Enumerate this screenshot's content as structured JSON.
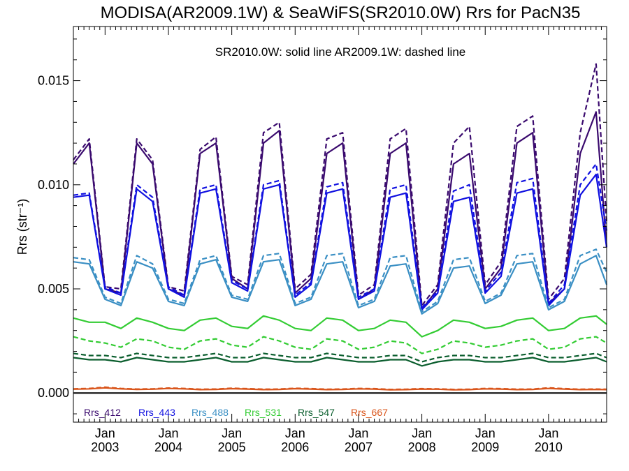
{
  "chart_data": {
    "type": "line",
    "title": "MODISA(AR2009.1W) & SeaWiFS(SR2010.0W)  Rrs for PacN35",
    "annotation": "SR2010.0W: solid line   AR2009.1W: dashed line",
    "ylabel": "Rrs (str⁻¹)",
    "xlabel": "",
    "ylim": [
      -0.0014,
      0.0176
    ],
    "xlim": [
      "2002-07",
      "2010-12"
    ],
    "yticks": [
      {
        "value": 0.0,
        "label": "0.000"
      },
      {
        "value": 0.005,
        "label": "0.005"
      },
      {
        "value": 0.01,
        "label": "0.010"
      },
      {
        "value": 0.015,
        "label": "0.015"
      }
    ],
    "xticks": [
      {
        "value": "2003-01",
        "line1": "Jan",
        "line2": "2003"
      },
      {
        "value": "2004-01",
        "line1": "Jan",
        "line2": "2004"
      },
      {
        "value": "2005-01",
        "line1": "Jan",
        "line2": "2005"
      },
      {
        "value": "2006-01",
        "line1": "Jan",
        "line2": "2006"
      },
      {
        "value": "2007-01",
        "line1": "Jan",
        "line2": "2007"
      },
      {
        "value": "2008-01",
        "line1": "Jan",
        "line2": "2008"
      },
      {
        "value": "2009-01",
        "line1": "Jan",
        "line2": "2009"
      },
      {
        "value": "2010-01",
        "line1": "Jan",
        "line2": "2010"
      }
    ],
    "zero_line": true,
    "grid": false,
    "legend_position": "bottom-left inside plot",
    "x": [
      "2002-07",
      "2002-10",
      "2003-01",
      "2003-04",
      "2003-07",
      "2003-10",
      "2004-01",
      "2004-04",
      "2004-07",
      "2004-10",
      "2005-01",
      "2005-04",
      "2005-07",
      "2005-10",
      "2006-01",
      "2006-04",
      "2006-07",
      "2006-10",
      "2007-01",
      "2007-04",
      "2007-07",
      "2007-10",
      "2008-01",
      "2008-04",
      "2008-07",
      "2008-10",
      "2009-01",
      "2009-04",
      "2009-07",
      "2009-10",
      "2010-01",
      "2010-04",
      "2010-07",
      "2010-10",
      "2010-12"
    ],
    "series": [
      {
        "name": "Rrs_412",
        "color": "#3a0a6e",
        "solid": [
          0.011,
          0.012,
          0.005,
          0.0048,
          0.012,
          0.011,
          0.005,
          0.0047,
          0.0115,
          0.012,
          0.0055,
          0.005,
          0.012,
          0.0126,
          0.0048,
          0.0055,
          0.0115,
          0.012,
          0.0045,
          0.005,
          0.0115,
          0.012,
          0.004,
          0.005,
          0.011,
          0.0115,
          0.005,
          0.006,
          0.012,
          0.0125,
          0.0043,
          0.005,
          0.0115,
          0.0135,
          0.007
        ],
        "dashed": [
          0.0112,
          0.0122,
          0.0051,
          0.005,
          0.0122,
          0.0112,
          0.0051,
          0.0049,
          0.0117,
          0.0123,
          0.0056,
          0.0052,
          0.0125,
          0.013,
          0.005,
          0.0057,
          0.0122,
          0.0125,
          0.0047,
          0.0052,
          0.0122,
          0.0127,
          0.0042,
          0.0052,
          0.012,
          0.0128,
          0.0052,
          0.0063,
          0.0128,
          0.0133,
          0.0045,
          0.0055,
          0.0125,
          0.0158,
          0.0082
        ]
      },
      {
        "name": "Rrs_443",
        "color": "#1010e0",
        "solid": [
          0.0094,
          0.0095,
          0.005,
          0.0047,
          0.0098,
          0.0092,
          0.005,
          0.0046,
          0.0096,
          0.0098,
          0.0053,
          0.0049,
          0.0098,
          0.01,
          0.0046,
          0.0052,
          0.0096,
          0.0098,
          0.0045,
          0.0049,
          0.0094,
          0.0096,
          0.004,
          0.0048,
          0.0092,
          0.0094,
          0.0048,
          0.0056,
          0.0096,
          0.0098,
          0.0042,
          0.005,
          0.0095,
          0.0105,
          0.007
        ],
        "dashed": [
          0.0095,
          0.0096,
          0.0051,
          0.0048,
          0.01,
          0.0094,
          0.0051,
          0.0047,
          0.0098,
          0.01,
          0.0054,
          0.005,
          0.01,
          0.0102,
          0.0047,
          0.0053,
          0.0099,
          0.0101,
          0.0046,
          0.005,
          0.0098,
          0.01,
          0.0041,
          0.0049,
          0.0097,
          0.01,
          0.0049,
          0.0058,
          0.0101,
          0.0103,
          0.0043,
          0.0052,
          0.01,
          0.011,
          0.0078
        ]
      },
      {
        "name": "Rrs_488",
        "color": "#3a8fc4",
        "solid": [
          0.0063,
          0.0062,
          0.0045,
          0.0042,
          0.0063,
          0.006,
          0.0044,
          0.0042,
          0.0062,
          0.0064,
          0.0046,
          0.0044,
          0.0063,
          0.0064,
          0.0042,
          0.0045,
          0.0062,
          0.0063,
          0.0041,
          0.0044,
          0.0061,
          0.0062,
          0.0038,
          0.0043,
          0.006,
          0.0061,
          0.0043,
          0.0047,
          0.0062,
          0.0063,
          0.004,
          0.0044,
          0.0062,
          0.0066,
          0.0052
        ],
        "dashed": [
          0.0065,
          0.0064,
          0.0046,
          0.0043,
          0.0066,
          0.0062,
          0.0045,
          0.0043,
          0.0064,
          0.0066,
          0.0047,
          0.0045,
          0.0066,
          0.0067,
          0.0043,
          0.0046,
          0.0066,
          0.0067,
          0.0042,
          0.0045,
          0.0065,
          0.0066,
          0.0039,
          0.0044,
          0.0064,
          0.0065,
          0.0044,
          0.0048,
          0.0066,
          0.0067,
          0.0041,
          0.0045,
          0.0066,
          0.0069,
          0.0058
        ]
      },
      {
        "name": "Rrs_531",
        "color": "#33cc33",
        "solid": [
          0.0036,
          0.0034,
          0.0034,
          0.0031,
          0.0036,
          0.0034,
          0.0031,
          0.003,
          0.0035,
          0.0036,
          0.0032,
          0.0031,
          0.0037,
          0.0035,
          0.0031,
          0.003,
          0.0036,
          0.0035,
          0.003,
          0.0031,
          0.0035,
          0.0034,
          0.0027,
          0.003,
          0.0035,
          0.0034,
          0.0031,
          0.0032,
          0.0035,
          0.0036,
          0.003,
          0.0031,
          0.0036,
          0.0037,
          0.0033
        ],
        "dashed": [
          0.0027,
          0.0025,
          0.0024,
          0.0022,
          0.0026,
          0.0025,
          0.0022,
          0.0021,
          0.0025,
          0.0026,
          0.0023,
          0.0022,
          0.0027,
          0.0025,
          0.0022,
          0.0021,
          0.0026,
          0.0025,
          0.0021,
          0.0022,
          0.0025,
          0.0024,
          0.0019,
          0.0021,
          0.0025,
          0.0024,
          0.0022,
          0.0023,
          0.0025,
          0.0026,
          0.0021,
          0.0022,
          0.0026,
          0.0027,
          0.0024
        ]
      },
      {
        "name": "Rrs_547",
        "color": "#0b5e2e",
        "solid": [
          0.0017,
          0.0016,
          0.0016,
          0.0015,
          0.0017,
          0.0016,
          0.0015,
          0.0015,
          0.0016,
          0.0017,
          0.0015,
          0.0015,
          0.0017,
          0.0016,
          0.0015,
          0.0015,
          0.0017,
          0.0016,
          0.0015,
          0.0015,
          0.0016,
          0.0016,
          0.0013,
          0.0015,
          0.0016,
          0.0016,
          0.0015,
          0.0015,
          0.0016,
          0.0017,
          0.0015,
          0.0015,
          0.0016,
          0.0017,
          0.0015
        ],
        "dashed": [
          0.0019,
          0.0018,
          0.0018,
          0.0017,
          0.0019,
          0.0018,
          0.0017,
          0.0017,
          0.0018,
          0.0019,
          0.0017,
          0.0017,
          0.0019,
          0.0018,
          0.0017,
          0.0017,
          0.0019,
          0.0018,
          0.0017,
          0.0017,
          0.0018,
          0.0018,
          0.0015,
          0.0017,
          0.0018,
          0.0018,
          0.0017,
          0.0017,
          0.0018,
          0.0019,
          0.0017,
          0.0017,
          0.0018,
          0.0019,
          0.0017
        ]
      },
      {
        "name": "Rrs_667",
        "color": "#d9541a",
        "solid": [
          0.00018,
          0.0002,
          0.00025,
          0.0002,
          0.00017,
          0.00018,
          0.00022,
          0.0002,
          0.00016,
          0.00017,
          0.00021,
          0.00019,
          0.00016,
          0.00017,
          0.00021,
          0.00019,
          0.00016,
          0.00017,
          0.0002,
          0.00019,
          0.00015,
          0.00016,
          0.00019,
          0.00018,
          0.00015,
          0.00016,
          0.0002,
          0.00019,
          0.00016,
          0.00017,
          0.00022,
          0.00019,
          0.00016,
          0.00017,
          0.00016
        ],
        "dashed": [
          0.0002,
          0.00022,
          0.00028,
          0.00022,
          0.00019,
          0.0002,
          0.00024,
          0.00022,
          0.00018,
          0.00019,
          0.00023,
          0.00021,
          0.00018,
          0.00019,
          0.00023,
          0.00021,
          0.00018,
          0.00019,
          0.00022,
          0.00021,
          0.00017,
          0.00018,
          0.00021,
          0.0002,
          0.00017,
          0.00018,
          0.00022,
          0.00021,
          0.00018,
          0.00019,
          0.00025,
          0.00021,
          0.00018,
          0.00019,
          0.00018
        ]
      }
    ]
  }
}
